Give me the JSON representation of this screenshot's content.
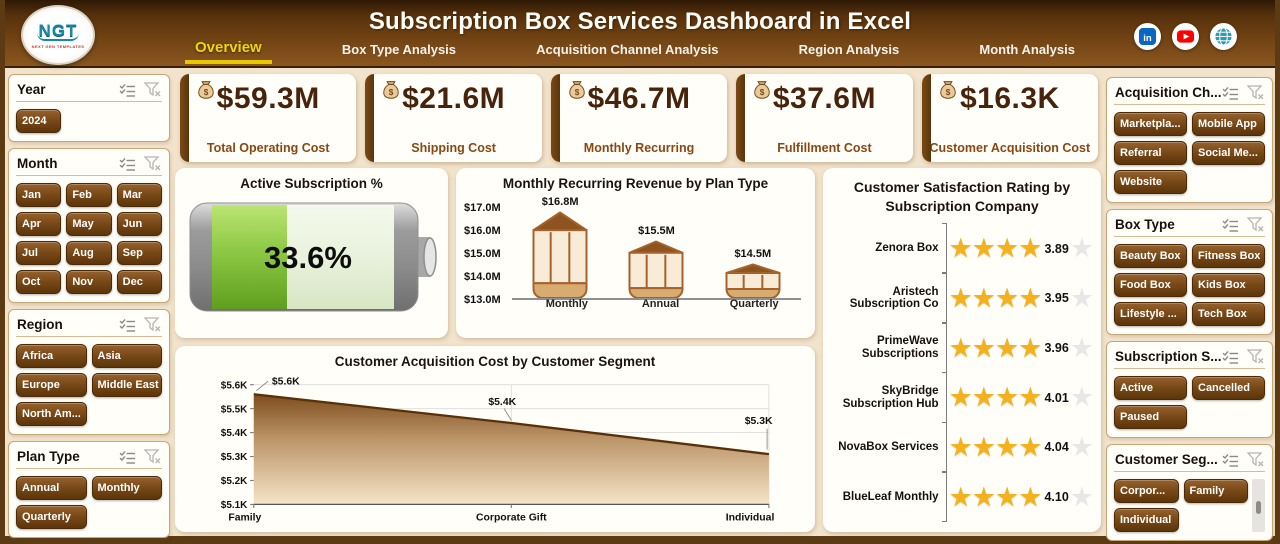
{
  "header": {
    "title": "Subscription Box Services Dashboard in Excel",
    "logo": {
      "text": "NGT",
      "subtext": "NEXT GEN TEMPLATES"
    },
    "tabs": [
      {
        "label": "Overview",
        "active": true
      },
      {
        "label": "Box Type Analysis",
        "active": false
      },
      {
        "label": "Acquisition Channel Analysis",
        "active": false
      },
      {
        "label": "Region Analysis",
        "active": false
      },
      {
        "label": "Month Analysis",
        "active": false
      }
    ],
    "social_icons": [
      "linkedin-icon",
      "youtube-icon",
      "globe-icon"
    ],
    "accent_yellow": "#f2d600",
    "brand_brown": "#6f4112"
  },
  "kpis": [
    {
      "icon": "coins-icon",
      "value": "$59.3M",
      "label": "Total Operating Cost"
    },
    {
      "icon": "money-bag-icon",
      "value": "$21.6M",
      "label": "Shipping Cost"
    },
    {
      "icon": "cash-icon",
      "value": "$46.7M",
      "label": "Monthly Recurring"
    },
    {
      "icon": "hand-coins-icon",
      "value": "$37.6M",
      "label": "Fulfillment Cost"
    },
    {
      "icon": "money-sack-icon",
      "value": "$16.3K",
      "label": "Customer Acquisition Cost"
    }
  ],
  "battery": {
    "title": "Active Subscription %",
    "value": "33.6%",
    "percent": 33.6,
    "fill_color": "#82c23a",
    "empty_color": "#e9f2dd"
  },
  "filters_left": [
    {
      "title": "Year",
      "cols": 3,
      "items": [
        "2024"
      ]
    },
    {
      "title": "Month",
      "cols": 3,
      "items": [
        "Jan",
        "Feb",
        "Mar",
        "Apr",
        "May",
        "Jun",
        "Jul",
        "Aug",
        "Sep",
        "Oct",
        "Nov",
        "Dec"
      ]
    },
    {
      "title": "Region",
      "cols": 2,
      "items": [
        "Africa",
        "Asia",
        "Europe",
        "Middle East",
        "North Am..."
      ]
    },
    {
      "title": "Plan Type",
      "cols": 2,
      "items": [
        "Annual",
        "Monthly",
        "Quarterly"
      ]
    }
  ],
  "filters_right": [
    {
      "title": "Acquisition Ch...",
      "cols": 2,
      "items": [
        "Marketpla...",
        "Mobile App",
        "Referral",
        "Social Me...",
        "Website"
      ]
    },
    {
      "title": "Box Type",
      "cols": 2,
      "items": [
        "Beauty Box",
        "Fitness Box",
        "Food Box",
        "Kids Box",
        "Lifestyle ...",
        "Tech Box"
      ]
    },
    {
      "title": "Subscription S...",
      "cols": 2,
      "items": [
        "Active",
        "Cancelled",
        "Paused"
      ]
    },
    {
      "title": "Customer Seg...",
      "cols": 2,
      "items": [
        "Corpor...",
        "Family",
        "Individual"
      ],
      "scrollbar": true
    }
  ],
  "chart_data": [
    {
      "type": "bar",
      "title": "Monthly Recurring Revenue by Plan Type",
      "categories": [
        "Monthly",
        "Annual",
        "Quarterly"
      ],
      "values": [
        16.8,
        15.5,
        14.5
      ],
      "labels": [
        "$16.8M",
        "$15.5M",
        "$14.5M"
      ],
      "ylabel": "",
      "xlabel": "",
      "ylim": [
        13.0,
        17.0
      ],
      "yticks": [
        "$17.0M",
        "$16.0M",
        "$15.0M",
        "$14.0M",
        "$13.0M"
      ],
      "grid": false,
      "bar_style": "pencil",
      "bar_colors": {
        "outline": "#a5632b",
        "body": "#f8ecd8",
        "band": "#d8ab71",
        "tip": "#8d5420"
      }
    },
    {
      "type": "area",
      "title": "Customer Acquisition Cost by Customer Segment",
      "categories": [
        "Family",
        "Corporate Gift",
        "Individual"
      ],
      "values": [
        5.56,
        5.44,
        5.31
      ],
      "labels": [
        "$5.6K",
        "$5.4K",
        "$5.3K"
      ],
      "ylabel": "",
      "xlabel": "",
      "ylim": [
        5.1,
        5.6
      ],
      "yticks": [
        "$5.6K",
        "$5.5K",
        "$5.4K",
        "$5.3K",
        "$5.2K",
        "$5.1K"
      ],
      "grid": true,
      "area_colors": {
        "line": "#5a3008",
        "fill_top": "#7d4c1d",
        "fill_bottom": "#f5e4c8"
      }
    },
    {
      "type": "rating",
      "title": "Customer Satisfaction Rating by Subscription Company",
      "categories": [
        "Zenora Box",
        "Aristech Subscription Co",
        "PrimeWave Subscriptions",
        "SkyBridge Subscription Hub",
        "NovaBox Services",
        "BlueLeaf Monthly"
      ],
      "values": [
        3.89,
        3.95,
        3.96,
        4.01,
        4.04,
        4.1
      ],
      "value_labels": [
        "3.89",
        "3.95",
        "3.96",
        "4.01",
        "4.04",
        "4.10"
      ],
      "max_stars": 5,
      "full_stars_shown": 4,
      "star_color": "#f3b11d"
    }
  ]
}
